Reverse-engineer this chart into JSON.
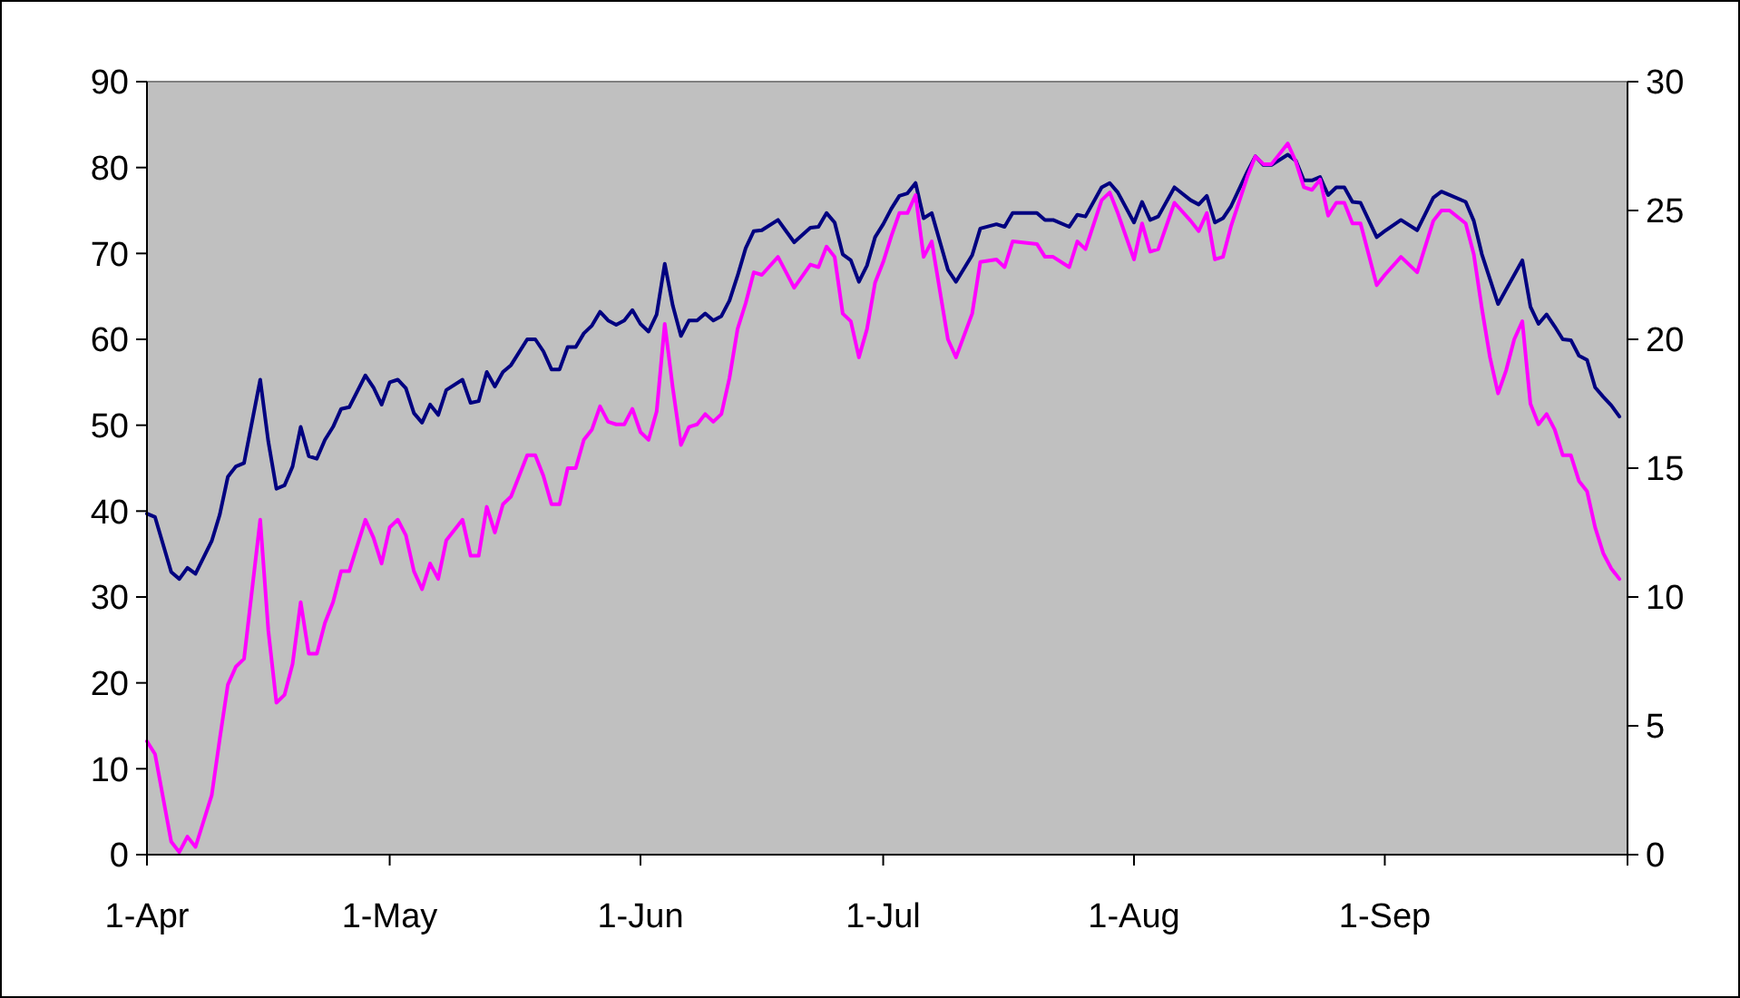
{
  "chart_data": {
    "type": "line",
    "x": [
      "--04-01",
      "--04-02",
      "--04-04",
      "--04-05",
      "--04-06",
      "--04-07",
      "--04-09",
      "--04-10",
      "--04-11",
      "--04-12",
      "--04-13",
      "--04-15",
      "--04-16",
      "--04-17",
      "--04-18",
      "--04-19",
      "--04-20",
      "--04-21",
      "--04-22",
      "--04-23",
      "--04-24",
      "--04-25",
      "--04-26",
      "--04-28",
      "--04-29",
      "--04-30",
      "--05-01",
      "--05-02",
      "--05-03",
      "--05-04",
      "--05-05",
      "--05-06",
      "--05-07",
      "--05-08",
      "--05-10",
      "--05-11",
      "--05-12",
      "--05-13",
      "--05-14",
      "--05-15",
      "--05-16",
      "--05-18",
      "--05-19",
      "--05-20",
      "--05-21",
      "--05-22",
      "--05-23",
      "--05-24",
      "--05-25",
      "--05-26",
      "--05-27",
      "--05-28",
      "--05-29",
      "--05-30",
      "--05-31",
      "--06-01",
      "--06-02",
      "--06-03",
      "--06-04",
      "--06-05",
      "--06-06",
      "--06-07",
      "--06-08",
      "--06-09",
      "--06-10",
      "--06-11",
      "--06-12",
      "--06-13",
      "--06-14",
      "--06-15",
      "--06-16",
      "--06-18",
      "--06-19",
      "--06-20",
      "--06-22",
      "--06-23",
      "--06-24",
      "--06-25",
      "--06-26",
      "--06-27",
      "--06-28",
      "--06-29",
      "--06-30",
      "--07-01",
      "--07-02",
      "--07-03",
      "--07-04",
      "--07-05",
      "--07-06",
      "--07-07",
      "--07-09",
      "--07-10",
      "--07-12",
      "--07-13",
      "--07-15",
      "--07-16",
      "--07-17",
      "--07-20",
      "--07-21",
      "--07-22",
      "--07-24",
      "--07-25",
      "--07-26",
      "--07-28",
      "--07-29",
      "--07-30",
      "--08-01",
      "--08-02",
      "--08-03",
      "--08-04",
      "--08-06",
      "--08-08",
      "--08-09",
      "--08-10",
      "--08-11",
      "--08-12",
      "--08-13",
      "--08-15",
      "--08-16",
      "--08-17",
      "--08-18",
      "--08-20",
      "--08-21",
      "--08-22",
      "--08-23",
      "--08-24",
      "--08-25",
      "--08-26",
      "--08-27",
      "--08-28",
      "--08-29",
      "--08-30",
      "--08-31",
      "--09-01",
      "--09-03",
      "--09-05",
      "--09-07",
      "--09-08",
      "--09-09",
      "--09-11",
      "--09-12",
      "--09-13",
      "--09-14",
      "--09-15",
      "--09-16",
      "--09-17",
      "--09-18",
      "--09-19",
      "--09-20",
      "--09-21",
      "--09-22",
      "--09-23",
      "--09-24",
      "--09-25",
      "--09-26",
      "--09-27",
      "--09-28",
      "--09-29",
      "--09-30"
    ],
    "series": [
      {
        "color": "#000080",
        "values": [
          39.7,
          39.3,
          32.9,
          32.1,
          33.4,
          32.7,
          36.5,
          39.6,
          44.0,
          45.2,
          45.6,
          55.3,
          48.1,
          42.6,
          43.0,
          45.2,
          49.8,
          46.4,
          46.1,
          48.3,
          49.8,
          51.9,
          52.1,
          55.8,
          54.4,
          52.4,
          55.0,
          55.3,
          54.3,
          51.4,
          50.3,
          52.4,
          51.2,
          54.1,
          55.3,
          52.6,
          52.8,
          56.2,
          54.5,
          56.2,
          57.0,
          60.0,
          60.0,
          58.6,
          56.5,
          56.5,
          59.1,
          59.1,
          60.7,
          61.6,
          63.2,
          62.2,
          61.7,
          62.2,
          63.4,
          61.8,
          60.9,
          62.9,
          68.8,
          63.9,
          60.4,
          62.2,
          62.2,
          63.0,
          62.2,
          62.7,
          64.5,
          67.4,
          70.6,
          72.6,
          72.7,
          73.9,
          72.6,
          71.3,
          73.0,
          73.1,
          74.7,
          73.6,
          69.9,
          69.2,
          66.7,
          68.6,
          71.9,
          73.4,
          75.2,
          76.7,
          77.0,
          78.2,
          74.1,
          74.7,
          68.1,
          66.7,
          69.8,
          72.9,
          73.4,
          73.1,
          74.7,
          74.7,
          73.9,
          73.9,
          73.1,
          74.5,
          74.3,
          77.7,
          78.2,
          77.1,
          73.6,
          76.0,
          73.9,
          74.3,
          77.7,
          76.2,
          75.7,
          76.7,
          73.6,
          74.1,
          75.5,
          79.5,
          81.3,
          80.3,
          80.3,
          81.5,
          80.8,
          78.5,
          78.5,
          78.9,
          76.8,
          77.7,
          77.7,
          76.0,
          75.9,
          73.9,
          71.9,
          72.6,
          73.9,
          72.7,
          76.5,
          77.2,
          76.8,
          76.0,
          73.8,
          69.9,
          67.0,
          64.1,
          65.8,
          67.5,
          69.2,
          63.8,
          61.8,
          62.9,
          61.5,
          60.0,
          59.9,
          58.1,
          57.6,
          54.4,
          53.3,
          52.3,
          51.0
        ]
      },
      {
        "color": "#ff00ff",
        "axis": "y2",
        "values": [
          4.4,
          3.9,
          0.5,
          0.1,
          0.7,
          0.3,
          2.3,
          4.5,
          6.6,
          7.3,
          7.6,
          13.0,
          8.7,
          5.9,
          6.2,
          7.4,
          9.8,
          7.8,
          7.8,
          9.0,
          9.8,
          11.0,
          11.0,
          13.0,
          12.3,
          11.3,
          12.7,
          13.0,
          12.4,
          11.0,
          10.3,
          11.3,
          10.7,
          12.2,
          13.0,
          11.6,
          11.6,
          13.5,
          12.5,
          13.6,
          13.9,
          15.5,
          15.5,
          14.7,
          13.6,
          13.6,
          15.0,
          15.0,
          16.1,
          16.5,
          17.4,
          16.8,
          16.7,
          16.7,
          17.3,
          16.4,
          16.1,
          17.2,
          20.6,
          18.1,
          15.9,
          16.6,
          16.7,
          17.1,
          16.8,
          17.1,
          18.5,
          20.4,
          21.4,
          22.6,
          22.5,
          23.2,
          22.6,
          22.0,
          22.9,
          22.8,
          23.6,
          23.2,
          21.0,
          20.7,
          19.3,
          20.4,
          22.2,
          23.0,
          24.0,
          24.9,
          24.9,
          25.6,
          23.2,
          23.8,
          20.0,
          19.3,
          21.0,
          23.0,
          23.1,
          22.8,
          23.8,
          23.7,
          23.2,
          23.2,
          22.8,
          23.8,
          23.5,
          25.4,
          25.7,
          24.9,
          23.1,
          24.5,
          23.4,
          23.5,
          25.3,
          24.6,
          24.2,
          24.9,
          23.1,
          23.2,
          24.4,
          26.3,
          27.1,
          26.8,
          26.8,
          27.6,
          26.9,
          25.9,
          25.8,
          26.2,
          24.8,
          25.3,
          25.3,
          24.5,
          24.5,
          23.3,
          22.1,
          22.5,
          23.2,
          22.6,
          24.6,
          25.0,
          25.0,
          24.5,
          23.3,
          21.2,
          19.3,
          17.9,
          18.8,
          20.0,
          20.7,
          17.5,
          16.7,
          17.1,
          16.5,
          15.5,
          15.5,
          14.5,
          14.1,
          12.7,
          11.7,
          11.1,
          10.7
        ]
      }
    ],
    "xlim": [
      "--04-01",
      "--10-01"
    ],
    "xticks": [
      {
        "value": "--04-01",
        "label": "1-Apr"
      },
      {
        "value": "--05-01",
        "label": "1-May"
      },
      {
        "value": "--06-01",
        "label": "1-Jun"
      },
      {
        "value": "--07-01",
        "label": "1-Jul"
      },
      {
        "value": "--08-01",
        "label": "1-Aug"
      },
      {
        "value": "--09-01",
        "label": "1-Sep"
      },
      {
        "value": "--10-01",
        "label": null
      }
    ],
    "ylim": [
      0,
      90
    ],
    "yticks": [
      0,
      10,
      20,
      30,
      40,
      50,
      60,
      70,
      80,
      90
    ],
    "y2lim": [
      0,
      30
    ],
    "y2ticks": [
      0,
      5,
      10,
      15,
      20,
      25,
      30
    ],
    "grid": false,
    "marker": "none",
    "line_style": "solid"
  }
}
